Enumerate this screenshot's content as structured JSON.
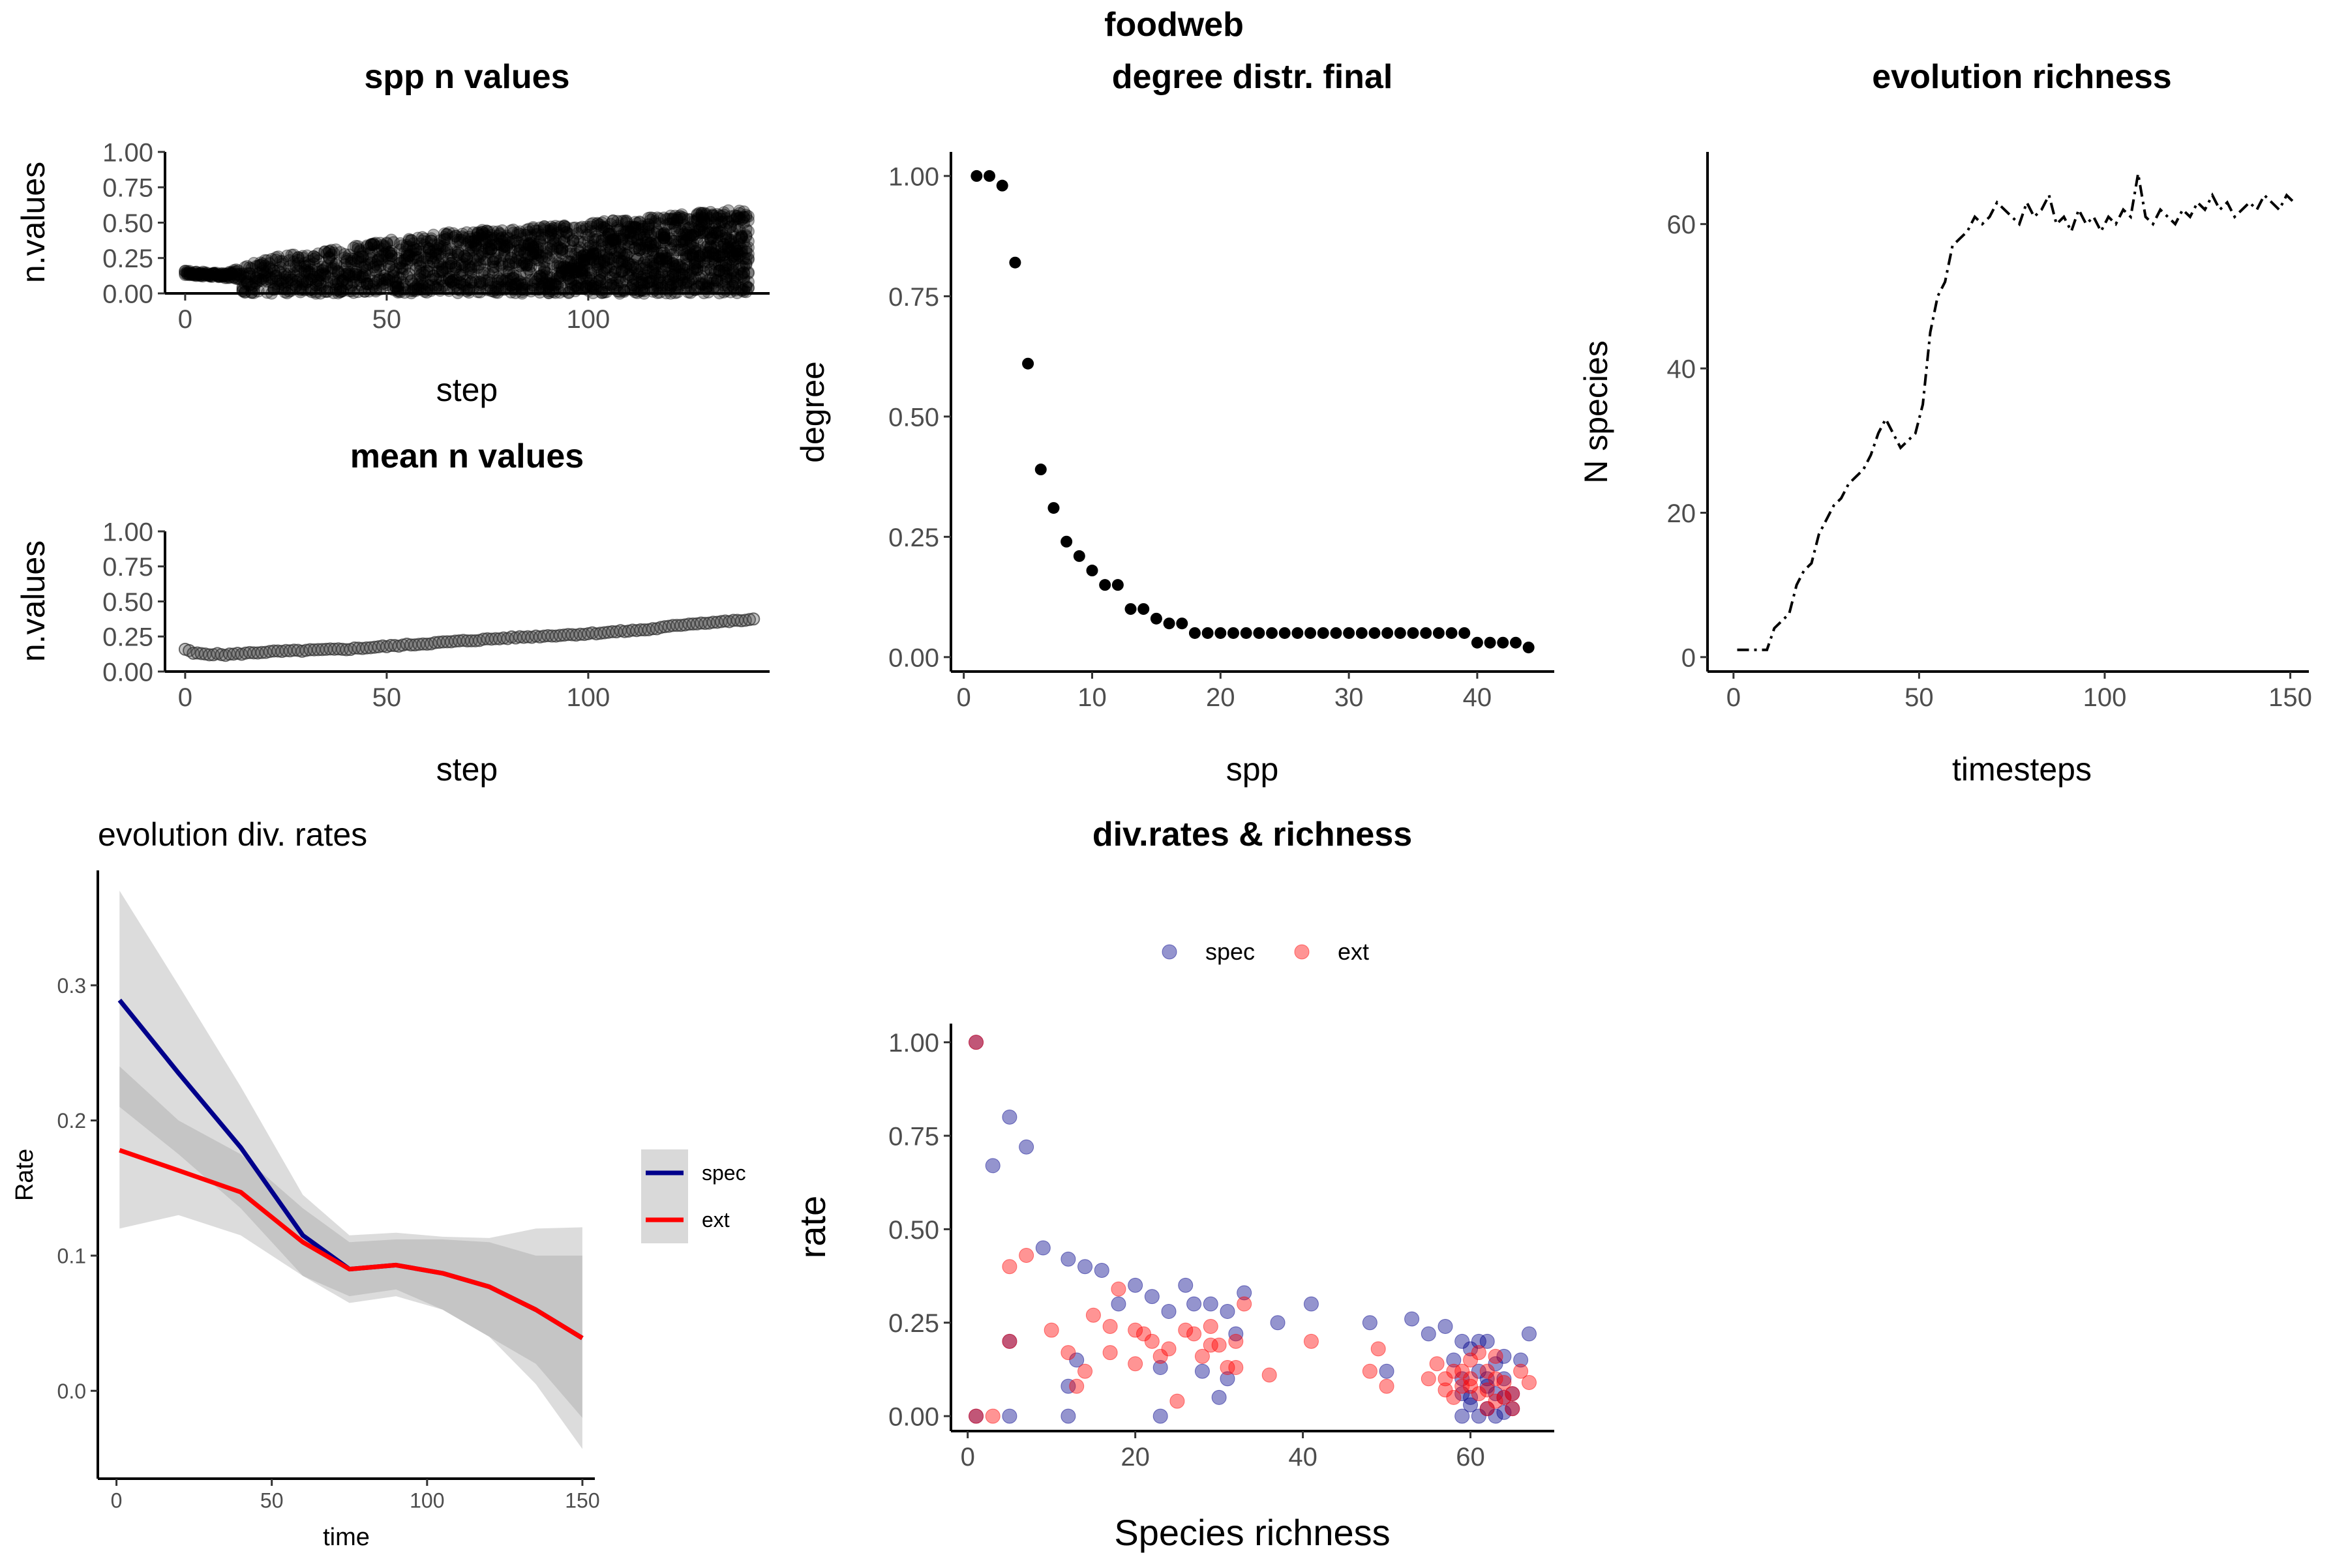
{
  "page_title": "foodweb",
  "colors": {
    "spec": "#00008B",
    "ext": "#FF0000",
    "ribbon": "#bebebe",
    "points": "#000000"
  },
  "chart_data": [
    {
      "id": "spp_n_values",
      "type": "scatter",
      "title": "spp n values",
      "xlabel": "step",
      "ylabel": "n.values",
      "xlim": [
        -5,
        145
      ],
      "ylim": [
        0,
        1
      ],
      "xticks": [
        0,
        50,
        100
      ],
      "yticks": [
        0,
        0.25,
        0.5,
        0.75,
        1
      ],
      "ytick_labels": [
        "0.00",
        "0.25",
        "0.50",
        "0.75",
        "1.00"
      ],
      "grid": false,
      "note_band_lower": [
        [
          0,
          0.15
        ],
        [
          10,
          0.12
        ],
        [
          15,
          0.04
        ],
        [
          140,
          0.0
        ]
      ],
      "band_upper": [
        [
          0,
          0.16
        ],
        [
          10,
          0.14
        ],
        [
          20,
          0.25
        ],
        [
          40,
          0.33
        ],
        [
          60,
          0.42
        ],
        [
          100,
          0.5
        ],
        [
          140,
          0.6
        ]
      ]
    },
    {
      "id": "mean_n_values",
      "type": "scatter",
      "title": "mean n values",
      "xlabel": "step",
      "ylabel": "n.values",
      "xlim": [
        -5,
        145
      ],
      "ylim": [
        0,
        1
      ],
      "xticks": [
        0,
        50,
        100
      ],
      "yticks": [
        0,
        0.25,
        0.5,
        0.75,
        1
      ],
      "ytick_labels": [
        "0.00",
        "0.25",
        "0.50",
        "0.75",
        "1.00"
      ],
      "grid": false,
      "curve": [
        [
          0,
          0.16
        ],
        [
          2,
          0.13
        ],
        [
          10,
          0.12
        ],
        [
          20,
          0.14
        ],
        [
          40,
          0.16
        ],
        [
          60,
          0.2
        ],
        [
          80,
          0.24
        ],
        [
          100,
          0.27
        ],
        [
          115,
          0.3
        ],
        [
          125,
          0.34
        ],
        [
          141,
          0.37
        ]
      ]
    },
    {
      "id": "degree_distr_final",
      "type": "scatter",
      "title": "degree distr. final",
      "xlabel": "spp",
      "ylabel": "degree",
      "xlim": [
        -1,
        46
      ],
      "ylim": [
        -0.03,
        1.05
      ],
      "xticks": [
        0,
        10,
        20,
        30,
        40
      ],
      "yticks": [
        0,
        0.25,
        0.5,
        0.75,
        1
      ],
      "ytick_labels": [
        "0.00",
        "0.25",
        "0.50",
        "0.75",
        "1.00"
      ],
      "grid": false,
      "x": [
        1,
        2,
        3,
        4,
        5,
        6,
        7,
        8,
        9,
        10,
        11,
        12,
        13,
        14,
        15,
        16,
        17,
        18,
        19,
        20,
        21,
        22,
        23,
        24,
        25,
        26,
        27,
        28,
        29,
        30,
        31,
        32,
        33,
        34,
        35,
        36,
        37,
        38,
        39,
        40,
        41,
        42,
        43,
        44
      ],
      "y": [
        1.0,
        1.0,
        0.98,
        0.82,
        0.61,
        0.39,
        0.31,
        0.24,
        0.21,
        0.18,
        0.15,
        0.15,
        0.1,
        0.1,
        0.08,
        0.07,
        0.07,
        0.05,
        0.05,
        0.05,
        0.05,
        0.05,
        0.05,
        0.05,
        0.05,
        0.05,
        0.05,
        0.05,
        0.05,
        0.05,
        0.05,
        0.05,
        0.05,
        0.05,
        0.05,
        0.05,
        0.05,
        0.05,
        0.05,
        0.03,
        0.03,
        0.03,
        0.03,
        0.02
      ]
    },
    {
      "id": "evolution_richness",
      "type": "line",
      "title": "evolution richness",
      "xlabel": "timesteps",
      "ylabel": "N species",
      "xlim": [
        -7,
        155
      ],
      "ylim": [
        -2,
        70
      ],
      "xticks": [
        0,
        50,
        100,
        150
      ],
      "yticks": [
        0,
        20,
        40,
        60
      ],
      "grid": false,
      "series": [
        {
          "line_style": "dashdot",
          "x": [
            1,
            3,
            5,
            7,
            9,
            11,
            13,
            15,
            17,
            19,
            21,
            23,
            25,
            27,
            29,
            31,
            33,
            35,
            37,
            39,
            41,
            43,
            45,
            47,
            49,
            51,
            53,
            55,
            57,
            59,
            61,
            63,
            65,
            67,
            69,
            71,
            73,
            75,
            77,
            79,
            81,
            83,
            85,
            87,
            89,
            91,
            93,
            95,
            97,
            99,
            101,
            103,
            105,
            107,
            109,
            111,
            113,
            115,
            117,
            119,
            121,
            123,
            125,
            127,
            129,
            131,
            133,
            135,
            137,
            139,
            141,
            143,
            145,
            147,
            149,
            151
          ],
          "y": [
            1,
            1,
            1,
            1,
            1,
            4,
            5,
            6,
            10,
            12,
            13,
            17,
            19,
            21,
            22,
            24,
            25,
            26,
            28,
            31,
            33,
            31,
            29,
            30,
            31,
            35,
            45,
            50,
            52,
            57,
            58,
            59,
            61,
            60,
            61,
            63,
            62,
            61,
            60,
            63,
            61,
            62,
            64,
            60,
            61,
            59,
            62,
            60,
            61,
            59,
            61,
            60,
            62,
            61,
            67,
            61,
            60,
            62,
            61,
            60,
            62,
            61,
            63,
            62,
            64,
            62,
            63,
            61,
            62,
            63,
            62,
            64,
            63,
            62,
            64,
            63
          ]
        }
      ]
    },
    {
      "id": "evolution_div_rates",
      "type": "line",
      "title": "evolution div. rates",
      "xlabel": "time",
      "ylabel": "Rate",
      "xlim": [
        -6,
        154
      ],
      "ylim": [
        -0.065,
        0.385
      ],
      "xticks": [
        0,
        50,
        100,
        150
      ],
      "yticks": [
        0,
        0.1,
        0.2,
        0.3
      ],
      "ytick_labels": [
        "0.0",
        "0.1",
        "0.2",
        "0.3"
      ],
      "grid": false,
      "legend_position": "right",
      "x": [
        1,
        20,
        40,
        60,
        75,
        90,
        105,
        120,
        135,
        150
      ],
      "series": [
        {
          "name": "spec",
          "color": "#00008B",
          "values": [
            0.289,
            0.235,
            0.18,
            0.115,
            0.09,
            0.093,
            0.087,
            0.077,
            0.06,
            0.039
          ],
          "lower": [
            0.21,
            0.175,
            0.135,
            0.085,
            0.065,
            0.07,
            0.06,
            0.04,
            0.005,
            -0.043
          ],
          "upper": [
            0.37,
            0.3,
            0.225,
            0.145,
            0.115,
            0.117,
            0.114,
            0.113,
            0.12,
            0.121
          ]
        },
        {
          "name": "ext",
          "color": "#FF0000",
          "values": [
            0.178,
            0.163,
            0.147,
            0.11,
            0.09,
            0.093,
            0.087,
            0.077,
            0.06,
            0.039
          ],
          "lower": [
            0.12,
            0.13,
            0.115,
            0.085,
            0.07,
            0.075,
            0.06,
            0.04,
            0.02,
            -0.02
          ],
          "upper": [
            0.24,
            0.2,
            0.175,
            0.135,
            0.11,
            0.112,
            0.112,
            0.11,
            0.1,
            0.1
          ]
        }
      ]
    },
    {
      "id": "div_rates_richness",
      "type": "scatter",
      "title": "div.rates & richness",
      "xlabel": "Species richness",
      "ylabel": "rate",
      "xlim": [
        -2,
        70
      ],
      "ylim": [
        -0.04,
        1.05
      ],
      "xticks": [
        0,
        20,
        40,
        60
      ],
      "yticks": [
        0,
        0.25,
        0.5,
        0.75,
        1
      ],
      "ytick_labels": [
        "0.00",
        "0.25",
        "0.50",
        "0.75",
        "1.00"
      ],
      "grid": false,
      "legend_position": "top",
      "series": [
        {
          "name": "spec",
          "color": "#00008B",
          "points": [
            [
              1,
              1.0
            ],
            [
              3,
              0.67
            ],
            [
              5,
              0.8
            ],
            [
              7,
              0.72
            ],
            [
              9,
              0.45
            ],
            [
              12,
              0.42
            ],
            [
              14,
              0.4
            ],
            [
              16,
              0.39
            ],
            [
              18,
              0.3
            ],
            [
              20,
              0.35
            ],
            [
              22,
              0.32
            ],
            [
              24,
              0.28
            ],
            [
              26,
              0.35
            ],
            [
              27,
              0.3
            ],
            [
              29,
              0.3
            ],
            [
              31,
              0.28
            ],
            [
              33,
              0.33
            ],
            [
              37,
              0.25
            ],
            [
              41,
              0.3
            ],
            [
              48,
              0.25
            ],
            [
              50,
              0.12
            ],
            [
              53,
              0.26
            ],
            [
              55,
              0.22
            ],
            [
              57,
              0.24
            ],
            [
              59,
              0.2
            ],
            [
              62,
              0.2
            ],
            [
              64,
              0.16
            ],
            [
              66,
              0.15
            ],
            [
              67,
              0.22
            ],
            [
              5,
              0.2
            ],
            [
              12,
              0.08
            ],
            [
              13,
              0.15
            ],
            [
              23,
              0.13
            ],
            [
              28,
              0.12
            ],
            [
              30,
              0.05
            ],
            [
              31,
              0.1
            ],
            [
              32,
              0.22
            ],
            [
              1,
              0.0
            ],
            [
              5,
              0.0
            ],
            [
              12,
              0.0
            ],
            [
              23,
              0.0
            ],
            [
              59,
              0.0
            ],
            [
              60,
              0.05
            ],
            [
              61,
              0.0
            ],
            [
              62,
              0.02
            ],
            [
              63,
              0.0
            ],
            [
              64,
              0.05
            ],
            [
              65,
              0.02
            ],
            [
              58,
              0.15
            ],
            [
              59,
              0.1
            ],
            [
              60,
              0.18
            ],
            [
              61,
              0.12
            ],
            [
              62,
              0.08
            ],
            [
              63,
              0.14
            ],
            [
              64,
              0.1
            ],
            [
              65,
              0.06
            ],
            [
              60,
              0.03
            ],
            [
              62,
              0.1
            ],
            [
              63,
              0.06
            ],
            [
              61,
              0.2
            ],
            [
              59,
              0.06
            ],
            [
              64,
              0.01
            ]
          ]
        },
        {
          "name": "ext",
          "color": "#FF0000",
          "points": [
            [
              1,
              1.0
            ],
            [
              5,
              0.4
            ],
            [
              7,
              0.43
            ],
            [
              10,
              0.23
            ],
            [
              15,
              0.27
            ],
            [
              17,
              0.24
            ],
            [
              18,
              0.34
            ],
            [
              20,
              0.23
            ],
            [
              21,
              0.22
            ],
            [
              22,
              0.2
            ],
            [
              24,
              0.18
            ],
            [
              26,
              0.23
            ],
            [
              27,
              0.22
            ],
            [
              29,
              0.24
            ],
            [
              30,
              0.19
            ],
            [
              32,
              0.2
            ],
            [
              33,
              0.3
            ],
            [
              36,
              0.11
            ],
            [
              41,
              0.2
            ],
            [
              48,
              0.12
            ],
            [
              49,
              0.18
            ],
            [
              50,
              0.08
            ],
            [
              1,
              0.0
            ],
            [
              3,
              0.0
            ],
            [
              5,
              0.2
            ],
            [
              12,
              0.17
            ],
            [
              13,
              0.08
            ],
            [
              14,
              0.12
            ],
            [
              17,
              0.17
            ],
            [
              20,
              0.14
            ],
            [
              23,
              0.16
            ],
            [
              25,
              0.04
            ],
            [
              28,
              0.16
            ],
            [
              29,
              0.19
            ],
            [
              31,
              0.13
            ],
            [
              32,
              0.13
            ],
            [
              55,
              0.1
            ],
            [
              56,
              0.14
            ],
            [
              57,
              0.1
            ],
            [
              58,
              0.12
            ],
            [
              59,
              0.08
            ],
            [
              60,
              0.1
            ],
            [
              61,
              0.06
            ],
            [
              62,
              0.12
            ],
            [
              63,
              0.04
            ],
            [
              64,
              0.09
            ],
            [
              65,
              0.02
            ],
            [
              66,
              0.12
            ],
            [
              67,
              0.09
            ],
            [
              58,
              0.05
            ],
            [
              60,
              0.15
            ],
            [
              62,
              0.02
            ],
            [
              63,
              0.16
            ],
            [
              59,
              0.12
            ],
            [
              61,
              0.17
            ],
            [
              64,
              0.05
            ],
            [
              57,
              0.07
            ],
            [
              60,
              0.08
            ],
            [
              62,
              0.07
            ],
            [
              63,
              0.1
            ],
            [
              65,
              0.06
            ]
          ]
        }
      ]
    }
  ]
}
